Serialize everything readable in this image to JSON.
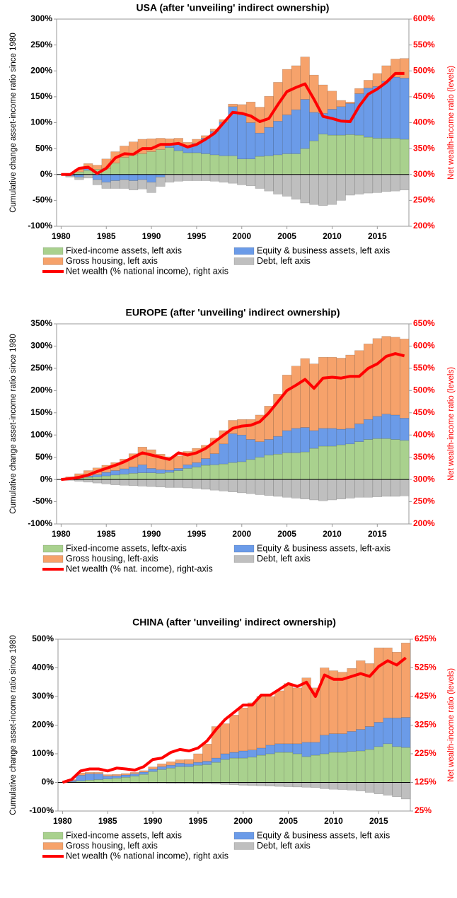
{
  "chart_data": [
    {
      "type": "bar",
      "title": "USA (after 'unveiling' indirect ownership)",
      "ylabel": "Cumulative  change asset-income ratio since 1980",
      "y2label": "Net wealth-income ratio (levels)",
      "x": [
        1980,
        1981,
        1982,
        1983,
        1984,
        1985,
        1986,
        1987,
        1988,
        1989,
        1990,
        1991,
        1992,
        1993,
        1994,
        1995,
        1996,
        1997,
        1998,
        1999,
        2000,
        2001,
        2002,
        2003,
        2004,
        2005,
        2006,
        2007,
        2008,
        2009,
        2010,
        2011,
        2012,
        2013,
        2014,
        2015,
        2016,
        2017,
        2018
      ],
      "xlim": [
        1979.5,
        2018.5
      ],
      "xticks": [
        1980,
        1985,
        1990,
        1995,
        2000,
        2005,
        2010,
        2015
      ],
      "ylim": [
        -100,
        300
      ],
      "yticks": [
        {
          "value": -100,
          "label": "-100%"
        },
        {
          "value": -50,
          "label": "-50%"
        },
        {
          "value": 0,
          "label": "0%"
        },
        {
          "value": 50,
          "label": "50%"
        },
        {
          "value": 100,
          "label": "100%"
        },
        {
          "value": 150,
          "label": "150%"
        },
        {
          "value": 200,
          "label": "200%"
        },
        {
          "value": 250,
          "label": "250%"
        },
        {
          "value": 300,
          "label": "300%"
        }
      ],
      "y2lim": [
        200,
        600
      ],
      "y2ticks": [
        {
          "value": 200,
          "label": "200%"
        },
        {
          "value": 250,
          "label": "250%"
        },
        {
          "value": 300,
          "label": "300%"
        },
        {
          "value": 350,
          "label": "350%"
        },
        {
          "value": 400,
          "label": "400%"
        },
        {
          "value": 450,
          "label": "450%"
        },
        {
          "value": 500,
          "label": "500%"
        },
        {
          "value": 550,
          "label": "550%"
        },
        {
          "value": 600,
          "label": "600%"
        }
      ],
      "series": [
        {
          "name": "Fixed-income assets, left axis",
          "color": "#a9d18e",
          "values": [
            0,
            2,
            5,
            8,
            10,
            12,
            22,
            33,
            38,
            40,
            44,
            48,
            52,
            46,
            42,
            42,
            40,
            38,
            36,
            36,
            30,
            30,
            35,
            36,
            38,
            40,
            40,
            50,
            65,
            78,
            76,
            76,
            77,
            76,
            72,
            70,
            70,
            70,
            68
          ]
        },
        {
          "name": "Equity & business assets, left axis",
          "color": "#6b9be8",
          "values": [
            0,
            -3,
            -5,
            3,
            -10,
            -15,
            -12,
            -10,
            -12,
            -10,
            -15,
            -5,
            5,
            12,
            12,
            18,
            30,
            45,
            65,
            95,
            85,
            70,
            45,
            55,
            65,
            75,
            85,
            95,
            55,
            40,
            50,
            55,
            60,
            80,
            95,
            100,
            110,
            118,
            118
          ]
        },
        {
          "name": "Gross housing, left axis",
          "color": "#f6a26b",
          "values": [
            0,
            0,
            5,
            10,
            8,
            18,
            22,
            22,
            25,
            28,
            25,
            22,
            12,
            12,
            8,
            8,
            5,
            5,
            5,
            5,
            20,
            40,
            50,
            60,
            75,
            88,
            85,
            82,
            72,
            55,
            35,
            12,
            3,
            10,
            15,
            25,
            30,
            35,
            38
          ]
        },
        {
          "name": "Debt, left axis",
          "color": "#bfbfbf",
          "values": [
            0,
            -2,
            -5,
            -7,
            -10,
            -12,
            -15,
            -17,
            -18,
            -18,
            -20,
            -18,
            -15,
            -13,
            -12,
            -12,
            -12,
            -13,
            -15,
            -17,
            -20,
            -22,
            -27,
            -32,
            -38,
            -42,
            -48,
            -55,
            -58,
            -60,
            -58,
            -50,
            -40,
            -38,
            -36,
            -35,
            -33,
            -32,
            -30
          ]
        },
        {
          "name": "Net wealth (% national income), right axis",
          "color": "#ff0000",
          "type": "line",
          "axis": "y2",
          "values": [
            300,
            300,
            312,
            314,
            302,
            312,
            332,
            340,
            339,
            350,
            350,
            358,
            358,
            360,
            353,
            358,
            368,
            380,
            400,
            420,
            418,
            413,
            402,
            408,
            435,
            460,
            468,
            475,
            445,
            412,
            408,
            403,
            402,
            432,
            455,
            465,
            478,
            495,
            495
          ]
        }
      ]
    },
    {
      "type": "bar",
      "title": "EUROPE (after 'unveiling' indirect ownership)",
      "ylabel": "Cumulative  change asset-income ratio since 1980",
      "y2label": "Net wealth-income ratio (levels)",
      "x": [
        1980,
        1981,
        1982,
        1983,
        1984,
        1985,
        1986,
        1987,
        1988,
        1989,
        1990,
        1991,
        1992,
        1993,
        1994,
        1995,
        1996,
        1997,
        1998,
        1999,
        2000,
        2001,
        2002,
        2003,
        2004,
        2005,
        2006,
        2007,
        2008,
        2009,
        2010,
        2011,
        2012,
        2013,
        2014,
        2015,
        2016,
        2017,
        2018
      ],
      "xlim": [
        1979.5,
        2018.5
      ],
      "xticks": [
        1980,
        1985,
        1990,
        1995,
        2000,
        2005,
        2010,
        2015
      ],
      "ylim": [
        -100,
        350
      ],
      "yticks": [
        {
          "value": -100,
          "label": "-100%"
        },
        {
          "value": -50,
          "label": "-50%"
        },
        {
          "value": 0,
          "label": "0%"
        },
        {
          "value": 50,
          "label": "50%"
        },
        {
          "value": 100,
          "label": "100%"
        },
        {
          "value": 150,
          "label": "150%"
        },
        {
          "value": 200,
          "label": "200%"
        },
        {
          "value": 250,
          "label": "250%"
        },
        {
          "value": 300,
          "label": "300%"
        },
        {
          "value": 350,
          "label": "350%"
        }
      ],
      "y2lim": [
        200,
        650
      ],
      "y2ticks": [
        {
          "value": 200,
          "label": "200%"
        },
        {
          "value": 250,
          "label": "250%"
        },
        {
          "value": 300,
          "label": "300%"
        },
        {
          "value": 350,
          "label": "350%"
        },
        {
          "value": 400,
          "label": "400%"
        },
        {
          "value": 450,
          "label": "450%"
        },
        {
          "value": 500,
          "label": "500%"
        },
        {
          "value": 550,
          "label": "550%"
        },
        {
          "value": 600,
          "label": "600%"
        },
        {
          "value": 650,
          "label": "650%"
        }
      ],
      "series": [
        {
          "name": "Fixed-income assets, leftx-axis",
          "color": "#a9d18e",
          "values": [
            0,
            2,
            3,
            5,
            6,
            8,
            10,
            12,
            14,
            15,
            15,
            14,
            16,
            20,
            25,
            28,
            32,
            33,
            35,
            38,
            40,
            45,
            50,
            55,
            57,
            60,
            60,
            62,
            70,
            75,
            75,
            78,
            80,
            85,
            90,
            92,
            92,
            90,
            88
          ]
        },
        {
          "name": "Equity & business assets, left-axis",
          "color": "#6b9be8",
          "values": [
            0,
            1,
            2,
            3,
            5,
            8,
            10,
            12,
            14,
            18,
            10,
            8,
            5,
            5,
            8,
            10,
            15,
            25,
            45,
            65,
            60,
            45,
            35,
            35,
            40,
            50,
            55,
            55,
            40,
            40,
            40,
            35,
            35,
            40,
            45,
            50,
            55,
            55,
            50
          ]
        },
        {
          "name": "Gross housing, left-axis",
          "color": "#f6a26b",
          "values": [
            0,
            3,
            8,
            12,
            15,
            16,
            18,
            22,
            30,
            40,
            42,
            35,
            30,
            28,
            30,
            32,
            30,
            35,
            30,
            30,
            35,
            45,
            60,
            75,
            95,
            125,
            140,
            155,
            150,
            160,
            160,
            160,
            165,
            165,
            170,
            175,
            175,
            175,
            178
          ]
        },
        {
          "name": "Debt, left axis",
          "color": "#bfbfbf",
          "values": [
            0,
            -2,
            -4,
            -6,
            -8,
            -10,
            -12,
            -13,
            -14,
            -15,
            -16,
            -17,
            -18,
            -18,
            -19,
            -20,
            -22,
            -24,
            -26,
            -28,
            -30,
            -32,
            -34,
            -36,
            -38,
            -40,
            -42,
            -44,
            -46,
            -48,
            -46,
            -44,
            -42,
            -40,
            -40,
            -39,
            -38,
            -38,
            -37
          ]
        },
        {
          "name": "Net wealth (% nat. income), right-axis",
          "color": "#ff0000",
          "type": "line",
          "axis": "y2",
          "values": [
            300,
            302,
            305,
            310,
            318,
            325,
            332,
            340,
            350,
            360,
            355,
            350,
            345,
            360,
            355,
            360,
            370,
            385,
            400,
            415,
            420,
            422,
            430,
            450,
            475,
            500,
            512,
            525,
            505,
            528,
            530,
            528,
            532,
            532,
            550,
            560,
            577,
            583,
            578
          ]
        }
      ]
    },
    {
      "type": "bar",
      "title": "CHINA (after 'unveiling' indirect ownership)",
      "ylabel": "Cumulative  change asset-income ratio since 1980",
      "y2label": "Net wealth-income ratio (levels)",
      "x": [
        1980,
        1981,
        1982,
        1983,
        1984,
        1985,
        1986,
        1987,
        1988,
        1989,
        1990,
        1991,
        1992,
        1993,
        1994,
        1995,
        1996,
        1997,
        1998,
        1999,
        2000,
        2001,
        2002,
        2003,
        2004,
        2005,
        2006,
        2007,
        2008,
        2009,
        2010,
        2011,
        2012,
        2013,
        2014,
        2015,
        2016,
        2017,
        2018
      ],
      "xlim": [
        1979.5,
        2018.5
      ],
      "xticks": [
        1980,
        1985,
        1990,
        1995,
        2000,
        2005,
        2010,
        2015
      ],
      "ylim": [
        -100,
        500
      ],
      "yticks": [
        {
          "value": -100,
          "label": "-100%"
        },
        {
          "value": 0,
          "label": "0%"
        },
        {
          "value": 100,
          "label": "100%"
        },
        {
          "value": 200,
          "label": "200%"
        },
        {
          "value": 300,
          "label": "300%"
        },
        {
          "value": 400,
          "label": "400%"
        },
        {
          "value": 500,
          "label": "500%"
        }
      ],
      "y2lim": [
        25,
        625
      ],
      "y2ticks": [
        {
          "value": 25,
          "label": "25%"
        },
        {
          "value": 125,
          "label": "125%"
        },
        {
          "value": 225,
          "label": "225%"
        },
        {
          "value": 325,
          "label": "325%"
        },
        {
          "value": 425,
          "label": "425%"
        },
        {
          "value": 525,
          "label": "525%"
        },
        {
          "value": 625,
          "label": "625%"
        }
      ],
      "series": [
        {
          "name": "Fixed-income assets, left axis",
          "color": "#a9d18e",
          "values": [
            0,
            2,
            5,
            8,
            10,
            12,
            15,
            18,
            22,
            28,
            38,
            45,
            50,
            55,
            55,
            60,
            62,
            70,
            80,
            85,
            85,
            88,
            95,
            100,
            105,
            105,
            100,
            90,
            95,
            100,
            105,
            105,
            108,
            110,
            115,
            125,
            135,
            125,
            122
          ]
        },
        {
          "name": "Equity & business assets, left axis",
          "color": "#6b9be8",
          "values": [
            0,
            5,
            20,
            22,
            20,
            10,
            8,
            8,
            8,
            8,
            8,
            10,
            10,
            12,
            10,
            10,
            12,
            15,
            20,
            20,
            25,
            25,
            25,
            30,
            30,
            30,
            35,
            50,
            45,
            65,
            65,
            65,
            70,
            75,
            80,
            85,
            90,
            100,
            105
          ]
        },
        {
          "name": "Gross housing, left axis",
          "color": "#f6a26b",
          "values": [
            0,
            3,
            8,
            5,
            5,
            5,
            5,
            5,
            5,
            5,
            8,
            10,
            12,
            12,
            15,
            30,
            60,
            110,
            105,
            130,
            150,
            165,
            180,
            170,
            185,
            210,
            195,
            225,
            190,
            235,
            220,
            215,
            220,
            240,
            220,
            260,
            245,
            230,
            260
          ]
        },
        {
          "name": "Debt, left axis",
          "color": "#bfbfbf",
          "values": [
            0,
            0,
            0,
            -1,
            -1,
            -2,
            -2,
            -2,
            -3,
            -3,
            -3,
            -3,
            -4,
            -4,
            -4,
            -5,
            -5,
            -6,
            -7,
            -8,
            -10,
            -11,
            -12,
            -13,
            -14,
            -15,
            -16,
            -17,
            -18,
            -22,
            -24,
            -25,
            -27,
            -30,
            -35,
            -40,
            -45,
            -50,
            -58
          ]
        },
        {
          "name": "Net wealth (% national income), right axis",
          "color": "#ff0000",
          "type": "line",
          "axis": "y2",
          "values": [
            125,
            135,
            165,
            172,
            172,
            165,
            175,
            172,
            168,
            180,
            205,
            210,
            230,
            240,
            235,
            245,
            270,
            310,
            345,
            370,
            395,
            395,
            430,
            430,
            450,
            470,
            460,
            475,
            425,
            500,
            485,
            485,
            495,
            505,
            495,
            530,
            550,
            535,
            560
          ]
        }
      ]
    }
  ]
}
